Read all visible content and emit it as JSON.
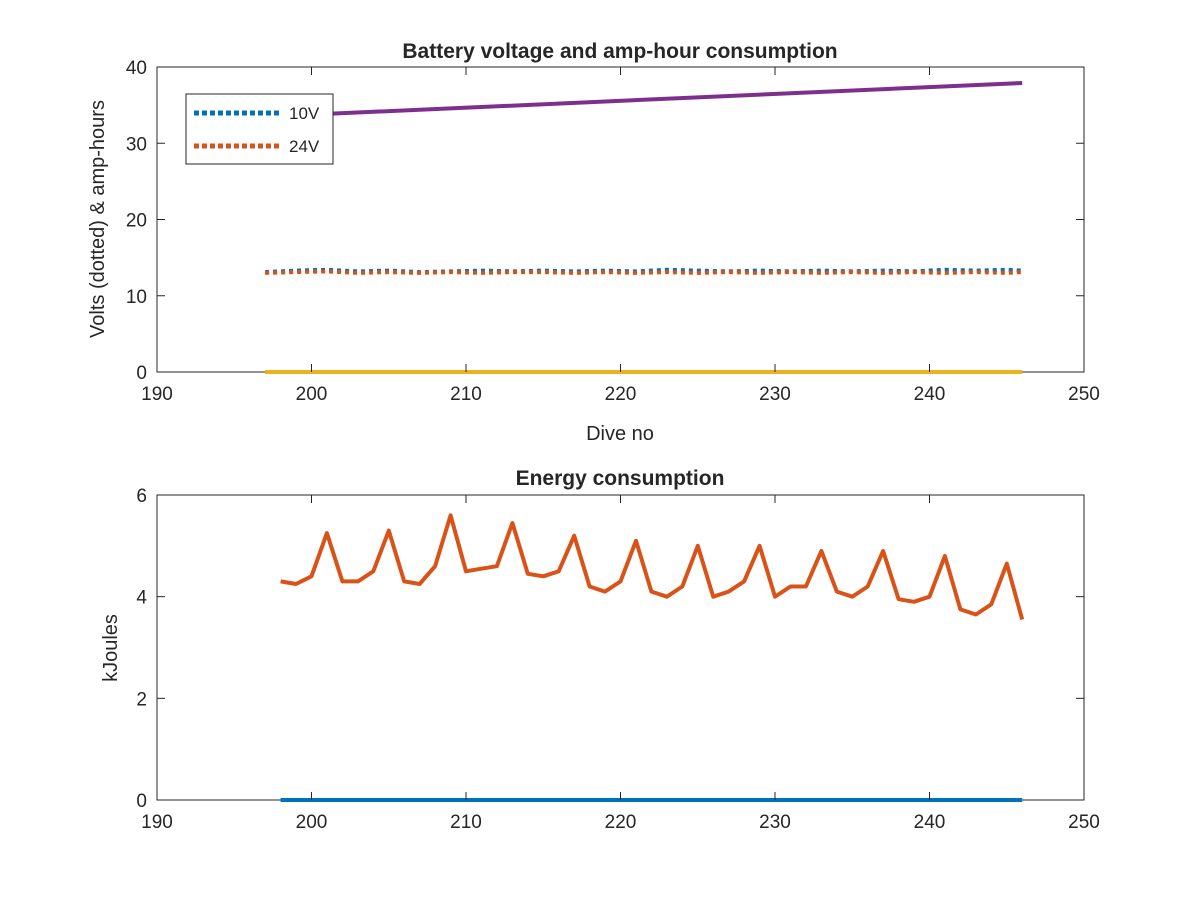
{
  "chart_data": [
    {
      "type": "line",
      "title": "Battery voltage and amp-hour consumption",
      "xlabel": "Dive no",
      "ylabel": "Volts (dotted) & amp-hours",
      "xlim": [
        190,
        250
      ],
      "ylim": [
        0,
        40
      ],
      "xticks": [
        "190",
        "200",
        "210",
        "220",
        "230",
        "240",
        "250"
      ],
      "yticks": [
        "0",
        "10",
        "20",
        "30",
        "40"
      ],
      "legend": {
        "position": "top-left",
        "entries": [
          "10V",
          "24V"
        ]
      },
      "series": [
        {
          "name": "10V",
          "style": "dotted",
          "color": "#0072BD",
          "x": [
            197,
            199,
            201,
            203,
            205,
            207,
            209,
            211,
            213,
            215,
            217,
            219,
            221,
            223,
            225,
            227,
            229,
            231,
            233,
            235,
            237,
            239,
            241,
            243,
            245,
            246
          ],
          "y": [
            13.1,
            13.3,
            13.4,
            13.2,
            13.3,
            13.1,
            13.2,
            13.3,
            13.2,
            13.3,
            13.2,
            13.3,
            13.2,
            13.4,
            13.3,
            13.2,
            13.3,
            13.2,
            13.3,
            13.2,
            13.3,
            13.2,
            13.4,
            13.3,
            13.4,
            13.3
          ]
        },
        {
          "name": "24V",
          "style": "dotted",
          "color": "#D95319",
          "x": [
            197,
            199,
            201,
            203,
            205,
            207,
            209,
            211,
            213,
            215,
            217,
            219,
            221,
            223,
            225,
            227,
            229,
            231,
            233,
            235,
            237,
            239,
            241,
            243,
            245,
            246
          ],
          "y": [
            13.0,
            13.1,
            13.2,
            13.0,
            13.1,
            13.0,
            13.1,
            13.0,
            13.1,
            13.1,
            13.0,
            13.1,
            13.0,
            13.1,
            13.0,
            13.1,
            13.0,
            13.1,
            13.0,
            13.1,
            13.0,
            13.1,
            13.0,
            13.1,
            13.0,
            13.1
          ]
        },
        {
          "style": "solid",
          "color": "#EDB120",
          "x": [
            197,
            246
          ],
          "y": [
            0,
            0
          ]
        },
        {
          "style": "solid",
          "color": "#7E2F8E",
          "x": [
            197,
            246
          ],
          "y": [
            33.5,
            37.9
          ]
        }
      ]
    },
    {
      "type": "line",
      "title": "Energy consumption",
      "xlabel": "",
      "ylabel": "kJoules",
      "xlim": [
        190,
        250
      ],
      "ylim": [
        0,
        6
      ],
      "xticks": [
        "190",
        "200",
        "210",
        "220",
        "230",
        "240",
        "250"
      ],
      "yticks": [
        "0",
        "2",
        "4",
        "6"
      ],
      "series": [
        {
          "style": "solid",
          "color": "#0072BD",
          "x": [
            198,
            246
          ],
          "y": [
            0,
            0
          ]
        },
        {
          "style": "solid",
          "color": "#D95319",
          "x": [
            198,
            199,
            200,
            201,
            202,
            203,
            204,
            205,
            206,
            207,
            208,
            209,
            210,
            211,
            212,
            213,
            214,
            215,
            216,
            217,
            218,
            219,
            220,
            221,
            222,
            223,
            224,
            225,
            226,
            227,
            228,
            229,
            230,
            231,
            232,
            233,
            234,
            235,
            236,
            237,
            238,
            239,
            240,
            241,
            242,
            243,
            244,
            245,
            246
          ],
          "y": [
            4.3,
            4.25,
            4.4,
            5.25,
            4.3,
            4.3,
            4.5,
            5.3,
            4.3,
            4.25,
            4.6,
            5.6,
            4.5,
            4.55,
            4.6,
            5.45,
            4.45,
            4.4,
            4.5,
            5.2,
            4.2,
            4.1,
            4.3,
            5.1,
            4.1,
            4.0,
            4.2,
            5.0,
            4.0,
            4.1,
            4.3,
            5.0,
            4.0,
            4.2,
            4.2,
            4.9,
            4.1,
            4.0,
            4.2,
            4.9,
            3.95,
            3.9,
            4.0,
            4.8,
            3.75,
            3.65,
            3.85,
            4.65,
            3.55
          ]
        }
      ]
    }
  ]
}
